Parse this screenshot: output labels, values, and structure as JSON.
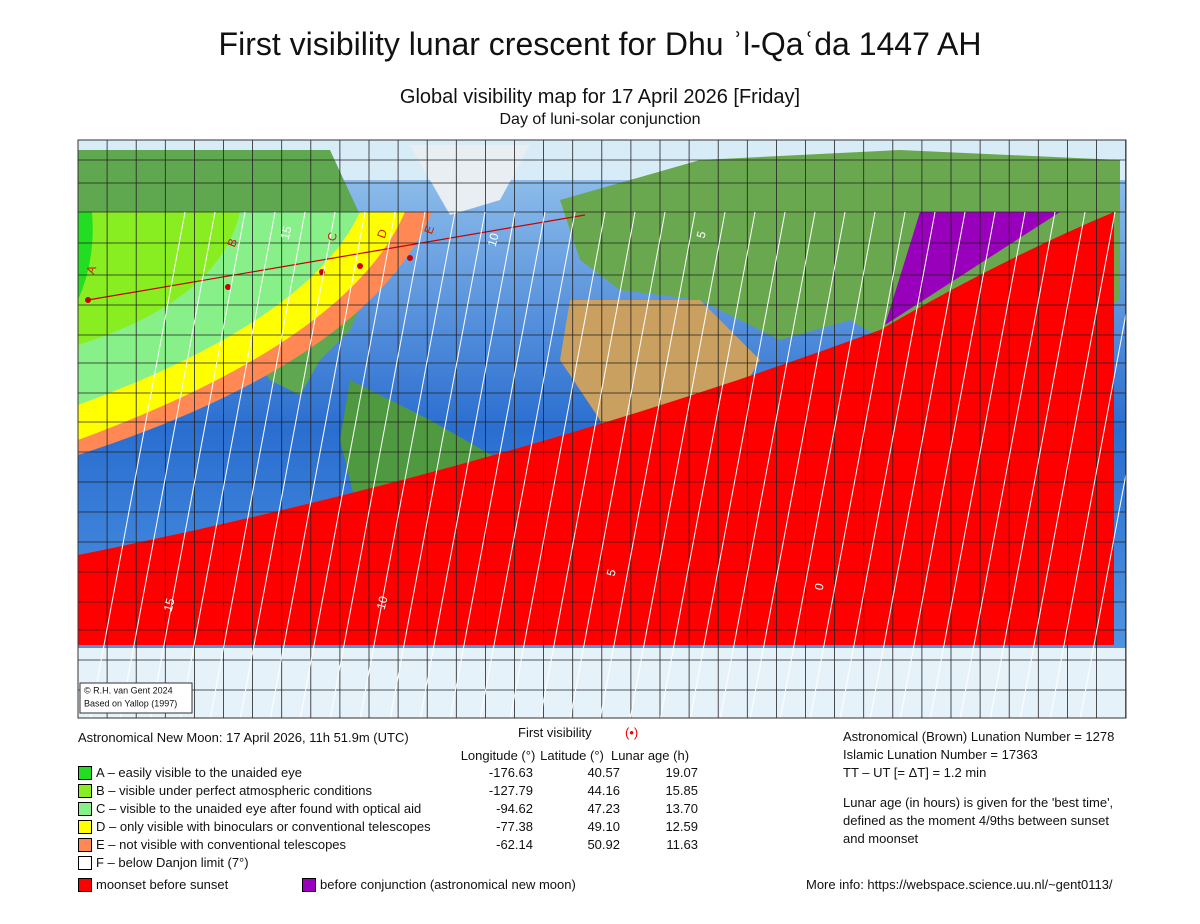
{
  "title": "First visibility lunar crescent for Dhu ʾl-Qaʿda 1447 AH",
  "subtitle": "Global visibility map for 17 April 2026 [Friday]",
  "subtitle2": "Day of luni-solar conjunction",
  "map": {
    "credits": [
      "© R.H. van Gent 2024",
      "Based on Yallop (1997)"
    ],
    "zone_labels": [
      "A",
      "B",
      "C",
      "D",
      "E"
    ],
    "contour_labels": [
      "15",
      "10",
      "5",
      "15",
      "10",
      "5",
      "0"
    ]
  },
  "info": {
    "new_moon": "Astronomical New Moon: 17 April 2026, 11h 51.9m (UTC)",
    "first_visibility_heading": "First visibility",
    "first_visibility_symbol": "(•)",
    "columns": [
      "Longitude (°)",
      "Latitude (°)",
      "Lunar age (h)"
    ],
    "legend": [
      {
        "color": "#22dd22",
        "label": "A – easily visible to the unaided eye",
        "values": [
          "-176.63",
          "40.57",
          "19.07"
        ]
      },
      {
        "color": "#88ee22",
        "label": "B – visible under perfect atmospheric conditions",
        "values": [
          "-127.79",
          "44.16",
          "15.85"
        ]
      },
      {
        "color": "#88f088",
        "label": "C – visible to the unaided eye after found with optical aid",
        "values": [
          "-94.62",
          "47.23",
          "13.70"
        ]
      },
      {
        "color": "#ffff00",
        "label": "D – only visible with binoculars or conventional telescopes",
        "values": [
          "-77.38",
          "49.10",
          "12.59"
        ]
      },
      {
        "color": "#ff8855",
        "label": "E – not visible with conventional telescopes",
        "values": [
          "-62.14",
          "50.92",
          "11.63"
        ]
      },
      {
        "color": "#ffffff",
        "label": "F – below Danjon limit (7°)"
      }
    ],
    "extra_legend": [
      {
        "color": "#ff0000",
        "label": "moonset before sunset"
      },
      {
        "color": "#9900bb",
        "label": "before conjunction (astronomical new moon)"
      }
    ],
    "right_lines": [
      "Astronomical (Brown) Lunation Number = 1278",
      "Islamic Lunation Number = 17363",
      "TT – UT [= ΔT] = 1.2 min"
    ],
    "note_lines": [
      "Lunar age (in hours) is given for the 'best time',",
      "defined as the moment 4/9ths between sunset",
      "and moonset"
    ],
    "more_info": "More info: https://webspace.science.uu.nl/~gent0113/"
  }
}
